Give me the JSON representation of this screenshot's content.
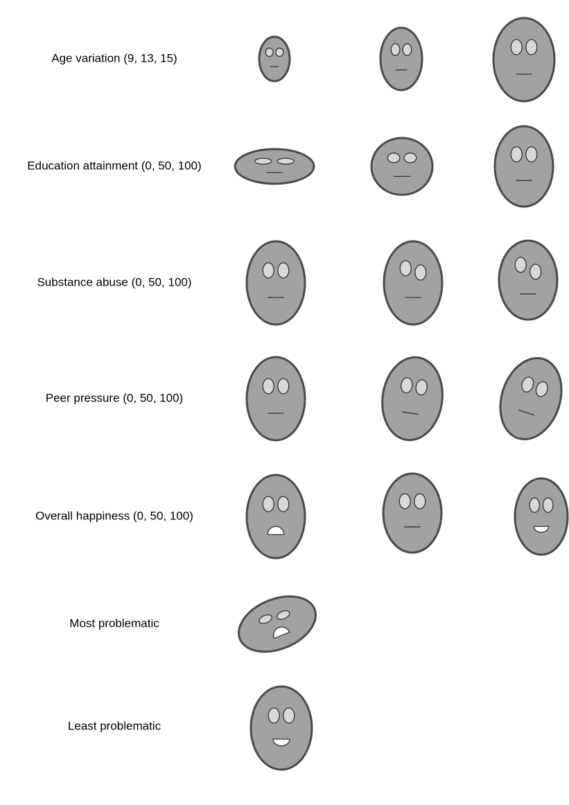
{
  "rows": [
    {
      "label": "Age variation (9, 13, 15)"
    },
    {
      "label": "Education attainment (0, 50, 100)"
    },
    {
      "label": "Substance abuse (0, 50, 100)"
    },
    {
      "label": "Peer pressure (0, 50, 100)"
    },
    {
      "label": "Overall happiness (0, 50, 100)"
    },
    {
      "label": "Most problematic"
    },
    {
      "label": "Least problematic"
    }
  ]
}
